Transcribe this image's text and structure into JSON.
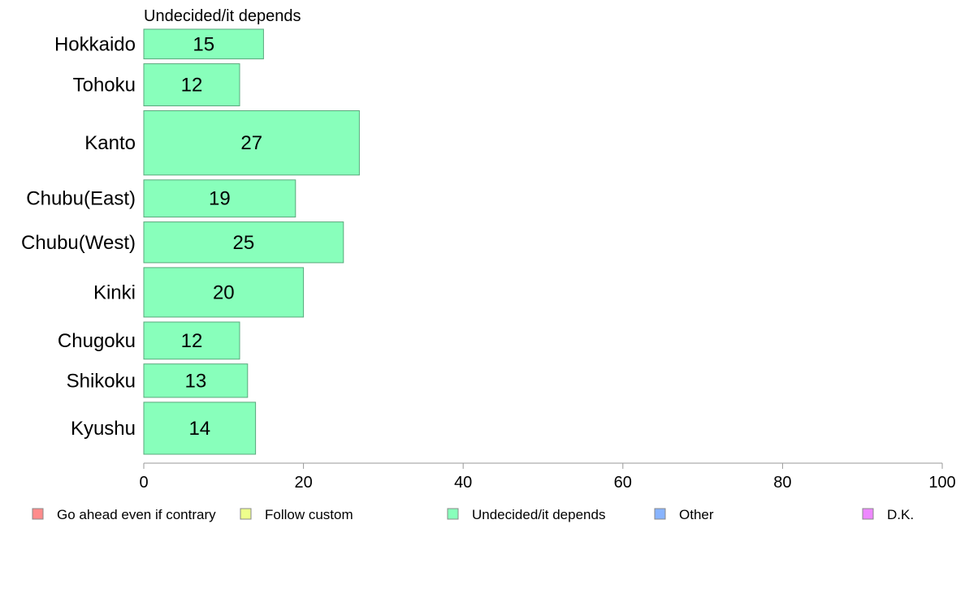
{
  "chart_data": {
    "type": "bar",
    "orientation": "horizontal",
    "title": "Undecided/it depends",
    "categories": [
      "Hokkaido",
      "Tohoku",
      "Kanto",
      "Chubu(East)",
      "Chubu(West)",
      "Kinki",
      "Chugoku",
      "Shikoku",
      "Kyushu"
    ],
    "values": [
      15,
      12,
      27,
      19,
      25,
      20,
      12,
      13,
      14
    ],
    "value_labels": [
      "15",
      "12",
      "27",
      "19",
      "25",
      "20",
      "12",
      "13",
      "14"
    ],
    "relative_widths": [
      1.2,
      1.7,
      2.6,
      1.5,
      1.65,
      2.0,
      1.5,
      1.35,
      2.1
    ],
    "xlim": [
      0,
      100
    ],
    "xticks": [
      "0",
      "20",
      "40",
      "60",
      "80",
      "100"
    ],
    "xlabel": "",
    "ylabel": "",
    "grid": false,
    "bar_color": "#88ffbb",
    "bar_stroke": "#5aa87c",
    "axis_color": "#999999",
    "legend": {
      "placement": "bottom",
      "items": [
        {
          "label": "Go ahead even if contrary",
          "color": "#ff8c8c"
        },
        {
          "label": "Follow custom",
          "color": "#eeff8c"
        },
        {
          "label": "Undecided/it depends",
          "color": "#88ffbb"
        },
        {
          "label": "Other",
          "color": "#88b4ff"
        },
        {
          "label": "D.K.",
          "color": "#ee88ff"
        }
      ]
    }
  }
}
